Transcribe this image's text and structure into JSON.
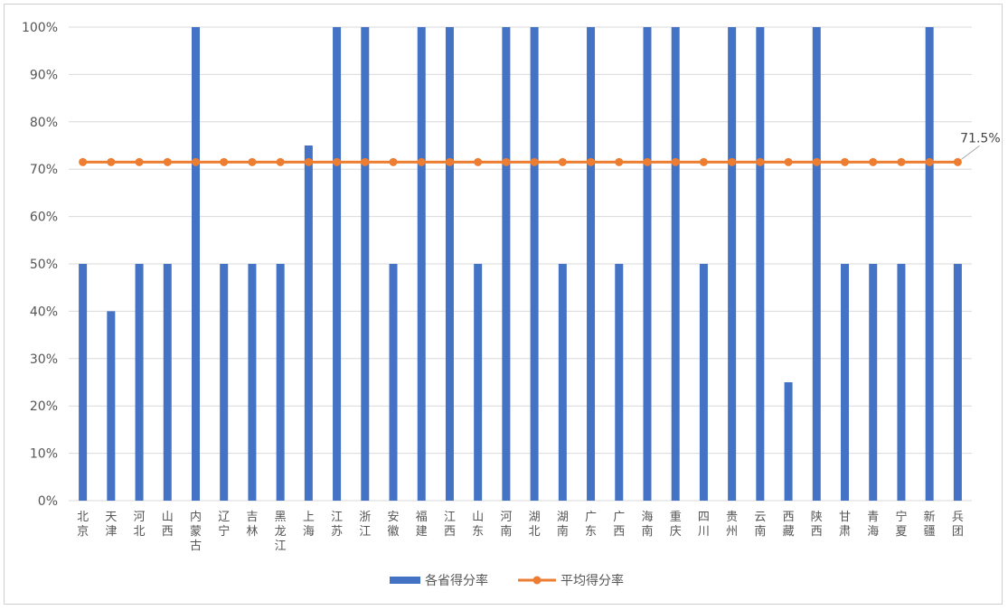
{
  "chart_data": {
    "type": "bar",
    "title": "",
    "xlabel": "",
    "ylabel": "",
    "ylim": [
      0,
      1
    ],
    "yticks": [
      "0%",
      "10%",
      "20%",
      "30%",
      "40%",
      "50%",
      "60%",
      "70%",
      "80%",
      "90%",
      "100%"
    ],
    "categories": [
      "北京",
      "天津",
      "河北",
      "山西",
      "内蒙古",
      "辽宁",
      "吉林",
      "黑龙江",
      "上海",
      "江苏",
      "浙江",
      "安徽",
      "福建",
      "江西",
      "山东",
      "河南",
      "湖北",
      "湖南",
      "广东",
      "广西",
      "海南",
      "重庆",
      "四川",
      "贵州",
      "云南",
      "西藏",
      "陕西",
      "甘肃",
      "青海",
      "宁夏",
      "新疆",
      "兵团"
    ],
    "series": [
      {
        "name": "各省得分率",
        "kind": "bar",
        "color": "#4472C4",
        "values": [
          0.5,
          0.4,
          0.5,
          0.5,
          1.0,
          0.5,
          0.5,
          0.5,
          0.75,
          1.0,
          1.0,
          0.5,
          1.0,
          1.0,
          0.5,
          1.0,
          1.0,
          0.5,
          1.0,
          0.5,
          1.0,
          1.0,
          0.5,
          1.0,
          1.0,
          0.25,
          1.0,
          0.5,
          0.5,
          0.5,
          1.0,
          0.5
        ]
      },
      {
        "name": "平均得分率",
        "kind": "line",
        "color": "#ED7D31",
        "values": [
          0.715,
          0.715,
          0.715,
          0.715,
          0.715,
          0.715,
          0.715,
          0.715,
          0.715,
          0.715,
          0.715,
          0.715,
          0.715,
          0.715,
          0.715,
          0.715,
          0.715,
          0.715,
          0.715,
          0.715,
          0.715,
          0.715,
          0.715,
          0.715,
          0.715,
          0.715,
          0.715,
          0.715,
          0.715,
          0.715,
          0.715,
          0.715
        ]
      }
    ],
    "data_label": {
      "text": "71.5%",
      "series": "平均得分率",
      "index": 31
    },
    "grid": true,
    "legend_position": "bottom"
  }
}
